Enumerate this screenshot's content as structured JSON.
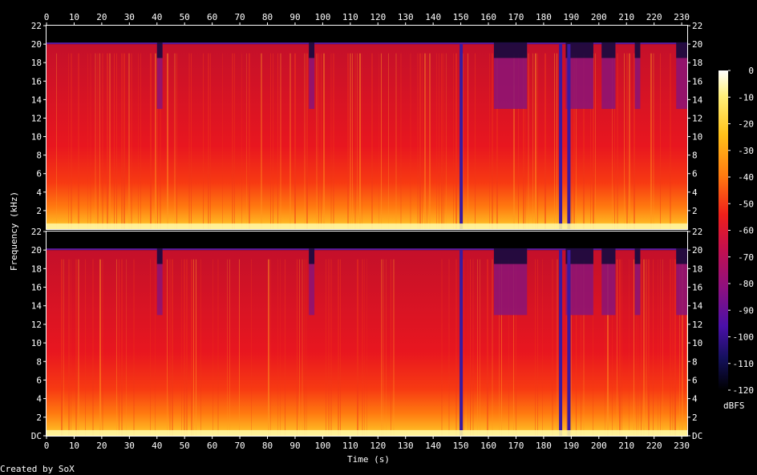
{
  "chart_data": {
    "type": "heatmap",
    "title": "",
    "xlabel": "Time (s)",
    "ylabel": "Frequency (kHz)",
    "xlim": [
      0,
      232
    ],
    "ylim": [
      0,
      22
    ],
    "x_ticks": [
      "0",
      "10",
      "20",
      "30",
      "40",
      "50",
      "60",
      "70",
      "80",
      "90",
      "100",
      "110",
      "120",
      "130",
      "140",
      "150",
      "160",
      "170",
      "180",
      "190",
      "200",
      "210",
      "220",
      "230"
    ],
    "y_ticks_top": [
      "22",
      "20",
      "18",
      "16",
      "14",
      "12",
      "10",
      "8",
      "6",
      "4",
      "2"
    ],
    "y_ticks_bottom": [
      "22",
      "20",
      "18",
      "16",
      "14",
      "12",
      "10",
      "8",
      "6",
      "4",
      "2",
      "DC"
    ],
    "channels": 2,
    "colorbar": {
      "label": "dBFS",
      "ticks": [
        "0",
        "-10",
        "-20",
        "-30",
        "-40",
        "-50",
        "-60",
        "-70",
        "-80",
        "-90",
        "-100",
        "-110",
        "-120"
      ],
      "range": [
        -120,
        0
      ]
    },
    "lowpass_cutoff_khz": 20,
    "quiet_segments_s": [
      [
        40,
        42
      ],
      [
        95,
        97
      ],
      [
        162,
        174
      ],
      [
        188,
        198
      ],
      [
        201,
        206
      ],
      [
        213,
        215
      ],
      [
        228,
        232
      ]
    ],
    "dropouts_s": [
      150,
      186,
      189
    ]
  },
  "footer": {
    "credit": "Created by SoX"
  }
}
